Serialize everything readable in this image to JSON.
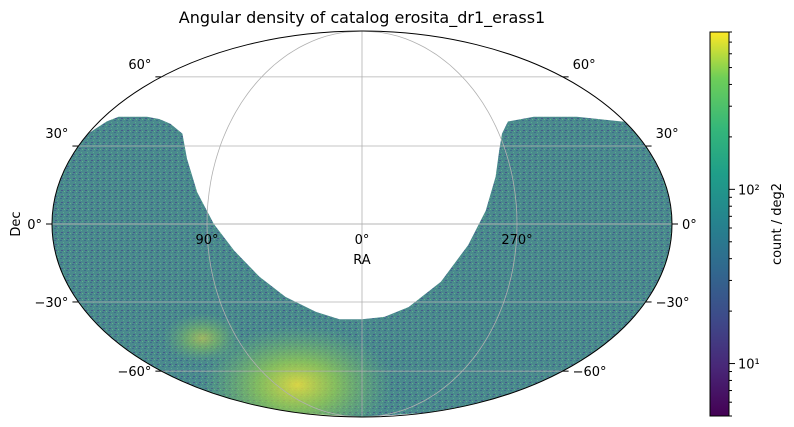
{
  "chart_data": {
    "type": "heatmap",
    "projection": "mollweide",
    "title": "Angular density of catalog erosita_dr1_erass1",
    "xlabel": "RA",
    "ylabel": "Dec",
    "grid": true,
    "ra_ticks": [
      {
        "ra": 90,
        "label": "90°"
      },
      {
        "ra": 0,
        "label": "0°"
      },
      {
        "ra": 270,
        "label": "270°"
      }
    ],
    "ra_meridians": [
      90,
      0,
      270
    ],
    "dec_ticks": [
      {
        "dec": 60,
        "label": "60°"
      },
      {
        "dec": 30,
        "label": "30°"
      },
      {
        "dec": 0,
        "label": "0°"
      },
      {
        "dec": -30,
        "label": "−30°"
      },
      {
        "dec": -60,
        "label": "−60°"
      }
    ],
    "coverage_boundary": {
      "note": "footprint edge traced from the map (RA in degrees, Dec in degrees)",
      "upper_left_edge": [
        [
          178,
          37
        ],
        [
          175,
          40
        ],
        [
          170,
          42
        ],
        [
          160,
          42
        ],
        [
          150,
          42
        ],
        [
          140,
          41
        ],
        [
          130,
          39
        ],
        [
          118,
          35
        ],
        [
          108,
          25
        ],
        [
          97,
          12
        ],
        [
          86,
          0
        ],
        [
          75,
          -10
        ],
        [
          62,
          -20
        ],
        [
          48,
          -28
        ],
        [
          30,
          -34
        ],
        [
          15,
          -37
        ],
        [
          0,
          -37
        ],
        [
          -15,
          -36
        ],
        [
          -30,
          -32
        ],
        [
          -48,
          -22
        ],
        [
          -62,
          -8
        ],
        [
          -72,
          5
        ],
        [
          -80,
          18
        ],
        [
          -86,
          28
        ],
        [
          -92,
          35
        ],
        [
          -100,
          40
        ],
        [
          -120,
          42
        ],
        [
          -150,
          42
        ],
        [
          -178,
          40
        ]
      ],
      "hotspots": [
        {
          "ra": 68,
          "dec": -67,
          "label": ""
        },
        {
          "ra": 115,
          "dec": -45,
          "label": ""
        }
      ]
    },
    "colorbar": {
      "label": "count / deg2",
      "scale": "log",
      "range": [
        5,
        800
      ],
      "colormap": "viridis",
      "major_ticks": [
        {
          "value": 10,
          "label": "10¹"
        },
        {
          "value": 100,
          "label": "10²"
        }
      ]
    },
    "typical_density": 60
  }
}
